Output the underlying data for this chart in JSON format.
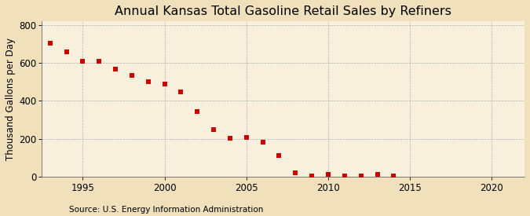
{
  "title": "Annual Kansas Total Gasoline Retail Sales by Refiners",
  "ylabel": "Thousand Gallons per Day",
  "source": "Source: U.S. Energy Information Administration",
  "background_color": "#f0e0bc",
  "plot_background_color": "#f8f0dc",
  "marker_color": "#cc0000",
  "years": [
    1993,
    1994,
    1995,
    1996,
    1997,
    1998,
    1999,
    2000,
    2001,
    2002,
    2003,
    2004,
    2005,
    2006,
    2007,
    2008,
    2009,
    2010,
    2011,
    2012,
    2013,
    2014
  ],
  "values": [
    706,
    660,
    610,
    608,
    568,
    534,
    502,
    490,
    448,
    344,
    250,
    201,
    206,
    180,
    110,
    18,
    3,
    10,
    5,
    5,
    10,
    3
  ],
  "xlim": [
    1992.5,
    2022
  ],
  "ylim": [
    0,
    820
  ],
  "yticks": [
    0,
    200,
    400,
    600,
    800
  ],
  "xticks": [
    1995,
    2000,
    2005,
    2010,
    2015,
    2020
  ],
  "grid_color": "#aaaaaa",
  "title_fontsize": 11.5,
  "label_fontsize": 8.5,
  "tick_fontsize": 8.5,
  "source_fontsize": 7.5,
  "marker_size": 14
}
